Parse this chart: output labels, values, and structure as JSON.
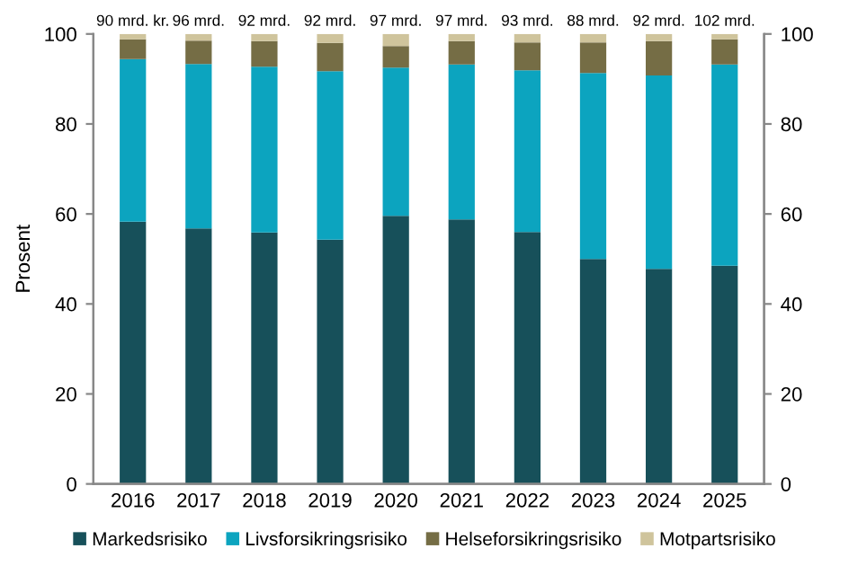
{
  "chart_data": {
    "type": "bar",
    "stacked": true,
    "ylabel": "Prosent",
    "categories": [
      "2016",
      "2017",
      "2018",
      "2019",
      "2020",
      "2021",
      "2022",
      "2023",
      "2024",
      "2025"
    ],
    "series": [
      {
        "name": "Markedsrisiko",
        "color": "#17505a",
        "values": [
          58.3,
          56.8,
          55.9,
          54.3,
          59.6,
          58.8,
          56.0,
          50.0,
          47.8,
          48.5
        ]
      },
      {
        "name": "Livsforsikringsrisiko",
        "color": "#0ca4bf",
        "values": [
          36.1,
          36.5,
          36.8,
          37.4,
          32.9,
          34.4,
          35.9,
          41.3,
          43.0,
          44.7
        ]
      },
      {
        "name": "Helseforsikringsrisiko",
        "color": "#756d45",
        "values": [
          4.4,
          5.2,
          5.7,
          6.3,
          4.8,
          5.2,
          6.2,
          6.8,
          7.6,
          5.6
        ]
      },
      {
        "name": "Motpartsrisiko",
        "color": "#cfc49c",
        "values": [
          1.2,
          1.5,
          1.6,
          2.0,
          2.7,
          1.6,
          1.9,
          1.9,
          1.6,
          1.2
        ]
      }
    ],
    "annotations": [
      {
        "text": "90 mrd. kr.",
        "x": "2016",
        "y": 100
      },
      {
        "text": "96 mrd.",
        "x": "2017",
        "y": 100
      },
      {
        "text": "92 mrd.",
        "x": "2018",
        "y": 100
      },
      {
        "text": "92 mrd.",
        "x": "2019",
        "y": 100
      },
      {
        "text": "97 mrd.",
        "x": "2020",
        "y": 100
      },
      {
        "text": "97 mrd.",
        "x": "2021",
        "y": 100
      },
      {
        "text": "93 mrd.",
        "x": "2022",
        "y": 100
      },
      {
        "text": "88 mrd.",
        "x": "2023",
        "y": 100
      },
      {
        "text": "92 mrd.",
        "x": "2024",
        "y": 100
      },
      {
        "text": "102 mrd.",
        "x": "2025",
        "y": 100
      }
    ],
    "ylim": [
      0,
      100
    ],
    "yticks": [
      0,
      20,
      40,
      60,
      80,
      100
    ],
    "y2lim": [
      0,
      100
    ],
    "y2ticks": [
      0,
      20,
      40,
      60,
      80,
      100
    ],
    "grid": false,
    "legend": "bottom"
  }
}
